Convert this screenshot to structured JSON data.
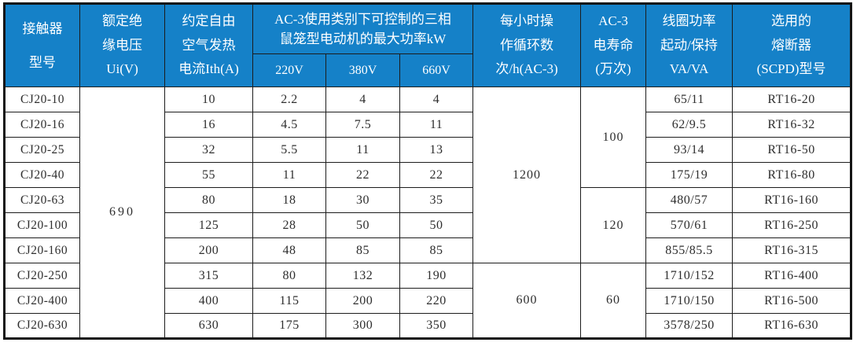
{
  "colors": {
    "header_bg": "#1581c8",
    "header_text": "#ffffff",
    "border": "#1c1c1c",
    "cell_text": "#2e2e2e",
    "background": "#ffffff"
  },
  "table": {
    "header": {
      "contactor_model": "接触器\n型号",
      "rated_insulation_voltage": "额定绝\n缘电压\nUi(V)",
      "free_air_thermal_current": "约定自由\n空气发热\n电流Ith(A)",
      "ac3_max_power_group": "AC-3使用类别下可控制的三相\n鼠笼型电动机的最大功率kW",
      "voltage_columns": [
        "220V",
        "380V",
        "660V"
      ],
      "cycles_per_hour": "每小时操\n作循环数\n次/h(AC-3)",
      "ac3_electrical_life": "AC-3\n电寿命\n(万次)",
      "coil_power": "线圈功率\n起动/保持\nVA/VA",
      "fuse_type": "选用的\n熔断器\n(SCPD)型号"
    },
    "merged_cells": {
      "rated_insulation_voltage_value": "690",
      "cycles_rows_1_7": "1200",
      "cycles_rows_8_10": "600",
      "life_rows_1_4": "100",
      "life_rows_5_7": "120",
      "life_rows_8_10": "60"
    },
    "rows": [
      {
        "model": "CJ20-10",
        "ith": "10",
        "p220": "2.2",
        "p380": "4",
        "p660": "4",
        "coil": "65/11",
        "fuse": "RT16-20"
      },
      {
        "model": "CJ20-16",
        "ith": "16",
        "p220": "4.5",
        "p380": "7.5",
        "p660": "11",
        "coil": "62/9.5",
        "fuse": "RT16-32"
      },
      {
        "model": "CJ20-25",
        "ith": "32",
        "p220": "5.5",
        "p380": "11",
        "p660": "13",
        "coil": "93/14",
        "fuse": "RT16-50"
      },
      {
        "model": "CJ20-40",
        "ith": "55",
        "p220": "11",
        "p380": "22",
        "p660": "22",
        "coil": "175/19",
        "fuse": "RT16-80"
      },
      {
        "model": "CJ20-63",
        "ith": "80",
        "p220": "18",
        "p380": "30",
        "p660": "35",
        "coil": "480/57",
        "fuse": "RT16-160"
      },
      {
        "model": "CJ20-100",
        "ith": "125",
        "p220": "28",
        "p380": "50",
        "p660": "50",
        "coil": "570/61",
        "fuse": "RT16-250"
      },
      {
        "model": "CJ20-160",
        "ith": "200",
        "p220": "48",
        "p380": "85",
        "p660": "85",
        "coil": "855/85.5",
        "fuse": "RT16-315"
      },
      {
        "model": "CJ20-250",
        "ith": "315",
        "p220": "80",
        "p380": "132",
        "p660": "190",
        "coil": "1710/152",
        "fuse": "RT16-400"
      },
      {
        "model": "CJ20-400",
        "ith": "400",
        "p220": "115",
        "p380": "200",
        "p660": "220",
        "coil": "1710/150",
        "fuse": "RT16-500"
      },
      {
        "model": "CJ20-630",
        "ith": "630",
        "p220": "175",
        "p380": "300",
        "p660": "350",
        "coil": "3578/250",
        "fuse": "RT16-630"
      }
    ]
  }
}
